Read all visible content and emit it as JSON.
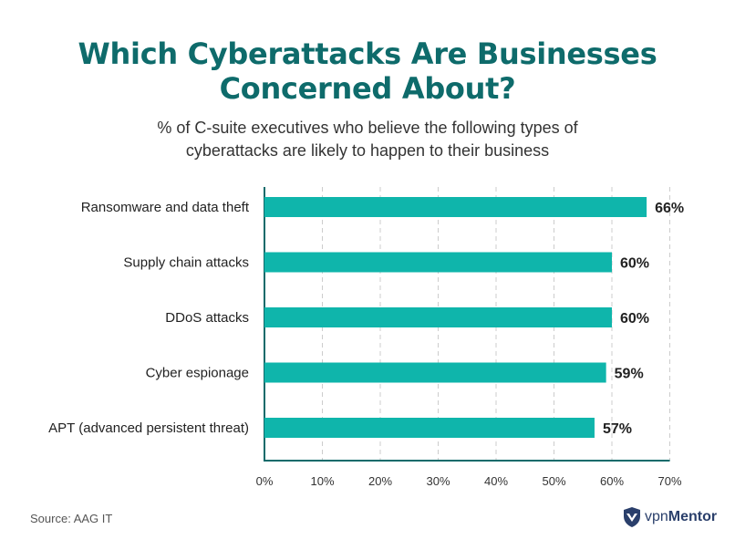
{
  "title_line1": "Which Cyberattacks Are Businesses",
  "title_line2": "Concerned About?",
  "subtitle_line1": "% of C-suite executives who believe the following types of",
  "subtitle_line2": "cyberattacks are likely to happen to their business",
  "source": "Source: AAG IT",
  "brand": {
    "name_prefix": "vpn",
    "name_suffix": "Mentor",
    "icon": "shield-icon",
    "color": "#2a3f6b"
  },
  "colors": {
    "bar": "#0fb5ab",
    "title": "#0e6b6b",
    "grid": "#cccccc"
  },
  "chart_data": {
    "type": "bar",
    "orientation": "horizontal",
    "categories": [
      "Ransomware and data theft",
      "Supply chain attacks",
      "DDoS attacks",
      "Cyber espionage",
      "APT (advanced persistent threat)"
    ],
    "values": [
      66,
      60,
      60,
      59,
      57
    ],
    "data_labels": [
      "66%",
      "60%",
      "60%",
      "59%",
      "57%"
    ],
    "xlim": [
      0,
      70
    ],
    "xticks": [
      0,
      10,
      20,
      30,
      40,
      50,
      60,
      70
    ],
    "xtick_labels": [
      "0%",
      "10%",
      "20%",
      "30%",
      "40%",
      "50%",
      "60%",
      "70%"
    ],
    "grid": "vertical dashed",
    "legend": "none"
  }
}
